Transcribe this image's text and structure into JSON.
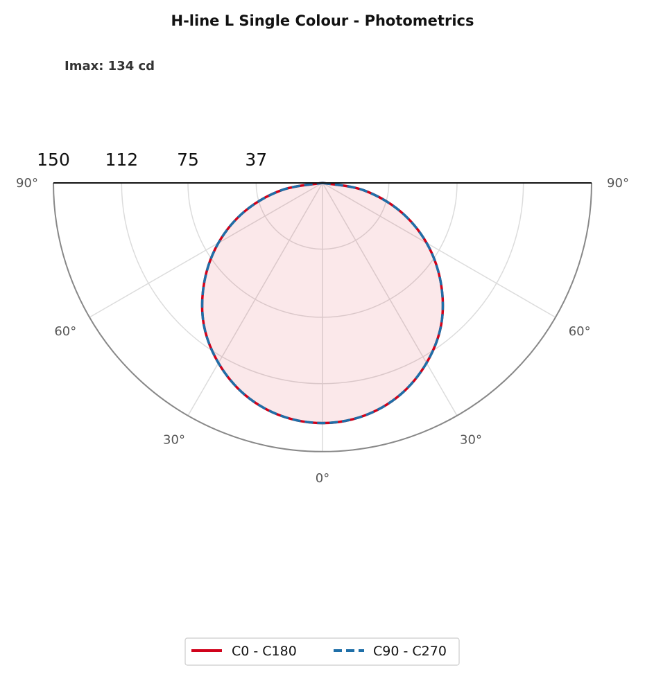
{
  "chart_data": {
    "type": "polar",
    "title": "H-line L Single Colour - Photometrics",
    "subtitle": "Imax: 134 cd",
    "r_max": 150,
    "r_ticks": [
      150,
      112,
      75,
      37
    ],
    "r_tick_labels": [
      "150",
      "112",
      "75",
      "37"
    ],
    "angle_ticks": [
      0,
      30,
      60,
      90
    ],
    "angle_tick_labels": [
      "0°",
      "30°",
      "60°",
      "90°"
    ],
    "angle_grid_deg": [
      0,
      30,
      60
    ],
    "grid": true,
    "legend_position": "bottom-center",
    "series": [
      {
        "name": "C0 - C180",
        "color": "#d0021b",
        "style": "solid",
        "fill": true,
        "angles_deg": [
          0,
          10,
          20,
          30,
          40,
          50,
          60,
          70,
          80,
          90
        ],
        "intensity_cd": [
          134,
          132,
          126,
          116,
          103,
          86,
          67,
          46,
          23,
          0
        ]
      },
      {
        "name": "C90 - C270",
        "color": "#1f6fa8",
        "style": "dashed",
        "fill": false,
        "angles_deg": [
          0,
          10,
          20,
          30,
          40,
          50,
          60,
          70,
          80,
          90
        ],
        "intensity_cd": [
          134,
          132,
          126,
          116,
          103,
          86,
          67,
          46,
          23,
          0
        ]
      }
    ]
  }
}
